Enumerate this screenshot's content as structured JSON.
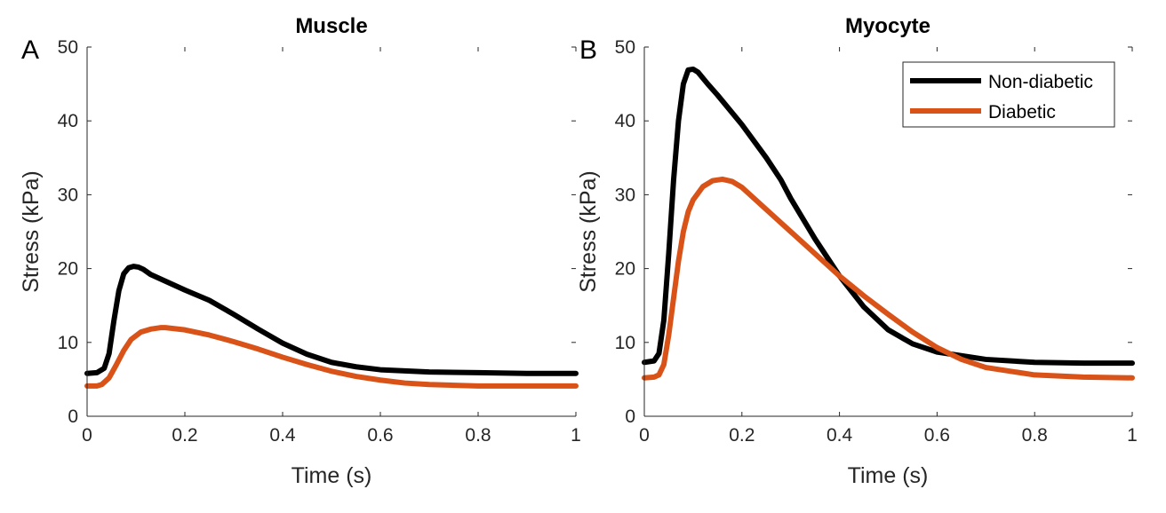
{
  "chart_data": [
    {
      "type": "line",
      "panel_label": "A",
      "title": "Muscle",
      "xlabel": "Time (s)",
      "ylabel": "Stress (kPa)",
      "xlim": [
        0,
        1
      ],
      "ylim": [
        0,
        50
      ],
      "x_ticks": [
        "0",
        "0.2",
        "0.4",
        "0.6",
        "0.8",
        "1"
      ],
      "y_ticks": [
        "0",
        "10",
        "20",
        "30",
        "40",
        "50"
      ],
      "grid": false,
      "legend": null,
      "series": [
        {
          "name": "Non-diabetic",
          "color": "#000000",
          "x": [
            0,
            0.02,
            0.035,
            0.045,
            0.055,
            0.065,
            0.075,
            0.085,
            0.095,
            0.105,
            0.115,
            0.13,
            0.15,
            0.2,
            0.25,
            0.3,
            0.35,
            0.4,
            0.45,
            0.5,
            0.55,
            0.6,
            0.7,
            0.8,
            0.9,
            1.0
          ],
          "y": [
            5.8,
            5.9,
            6.5,
            8.5,
            13.0,
            17.0,
            19.3,
            20.1,
            20.3,
            20.2,
            19.9,
            19.2,
            18.6,
            17.1,
            15.7,
            13.8,
            11.8,
            9.9,
            8.4,
            7.3,
            6.7,
            6.3,
            6.0,
            5.9,
            5.8,
            5.8
          ]
        },
        {
          "name": "Diabetic",
          "color": "#D95319",
          "x": [
            0,
            0.02,
            0.03,
            0.045,
            0.06,
            0.075,
            0.09,
            0.11,
            0.13,
            0.15,
            0.16,
            0.2,
            0.25,
            0.3,
            0.35,
            0.4,
            0.45,
            0.5,
            0.55,
            0.6,
            0.65,
            0.7,
            0.8,
            0.9,
            1.0
          ],
          "y": [
            4.1,
            4.1,
            4.3,
            5.2,
            7.0,
            8.9,
            10.4,
            11.4,
            11.8,
            12.0,
            12.0,
            11.7,
            11.0,
            10.1,
            9.1,
            8.0,
            7.0,
            6.1,
            5.4,
            4.9,
            4.5,
            4.3,
            4.1,
            4.1,
            4.1
          ]
        }
      ]
    },
    {
      "type": "line",
      "panel_label": "B",
      "title": "Myocyte",
      "xlabel": "Time (s)",
      "ylabel": "Stress (kPa)",
      "xlim": [
        0,
        1
      ],
      "ylim": [
        0,
        50
      ],
      "x_ticks": [
        "0",
        "0.2",
        "0.4",
        "0.6",
        "0.8",
        "1"
      ],
      "y_ticks": [
        "0",
        "10",
        "20",
        "30",
        "40",
        "50"
      ],
      "grid": false,
      "legend": "top-right",
      "series": [
        {
          "name": "Non-diabetic",
          "color": "#000000",
          "x": [
            0,
            0.02,
            0.03,
            0.04,
            0.05,
            0.06,
            0.07,
            0.08,
            0.09,
            0.1,
            0.11,
            0.13,
            0.15,
            0.2,
            0.25,
            0.28,
            0.3,
            0.35,
            0.4,
            0.45,
            0.5,
            0.55,
            0.6,
            0.7,
            0.8,
            0.9,
            1.0
          ],
          "y": [
            7.3,
            7.5,
            8.5,
            13.0,
            22.0,
            32.0,
            40.0,
            45.0,
            46.9,
            47.0,
            46.6,
            45.0,
            43.5,
            39.5,
            35.0,
            32.0,
            29.5,
            24.0,
            19.0,
            14.8,
            11.7,
            9.8,
            8.7,
            7.7,
            7.3,
            7.2,
            7.2
          ]
        },
        {
          "name": "Diabetic",
          "color": "#D95319",
          "x": [
            0,
            0.02,
            0.03,
            0.04,
            0.05,
            0.06,
            0.07,
            0.08,
            0.09,
            0.1,
            0.12,
            0.14,
            0.16,
            0.18,
            0.2,
            0.25,
            0.3,
            0.35,
            0.4,
            0.45,
            0.5,
            0.55,
            0.6,
            0.65,
            0.7,
            0.8,
            0.9,
            1.0
          ],
          "y": [
            5.2,
            5.3,
            5.6,
            7.0,
            11.0,
            16.0,
            21.0,
            25.0,
            27.7,
            29.3,
            31.1,
            31.9,
            32.1,
            31.8,
            31.0,
            28.0,
            25.0,
            22.0,
            19.0,
            16.3,
            13.8,
            11.4,
            9.3,
            7.7,
            6.6,
            5.6,
            5.3,
            5.2
          ]
        }
      ]
    }
  ]
}
